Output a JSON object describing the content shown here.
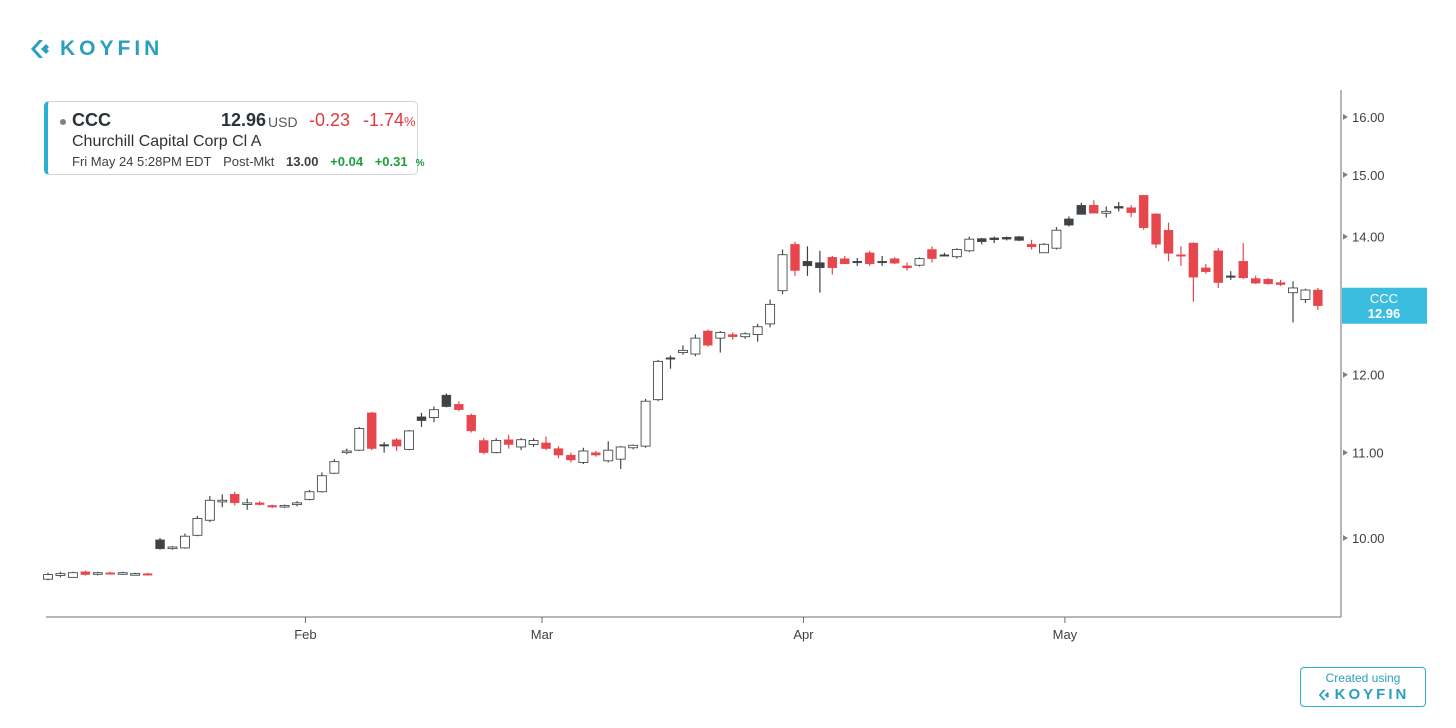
{
  "brand": {
    "name": "KOYFIN",
    "color": "#2a9fbf",
    "icon": "koyfin-chevron-icon"
  },
  "quote": {
    "ticker": "CCC",
    "price": "12.96",
    "currency": "USD",
    "change": "-0.23",
    "change_pct": "-1.74",
    "pct_sign": "%",
    "name": "Churchill Capital Corp Cl A",
    "timestamp": "Fri May 24 5:28PM EDT",
    "session": "Post-Mkt",
    "pm_price": "13.00",
    "pm_change": "+0.04",
    "pm_change_pct": "+0.31",
    "up_color": "#1e9e3e",
    "down_color": "#e0393e"
  },
  "footer": {
    "created_label": "Created using",
    "created_brand": "KOYFIN"
  },
  "chart_data": {
    "type": "candlestick",
    "x_tick_labels": [
      "Feb",
      "Mar",
      "Apr",
      "May"
    ],
    "y_tick_labels": [
      "10.00",
      "11.00",
      "12.00",
      "13.00",
      "14.00",
      "15.00",
      "16.00"
    ],
    "y_ticks": [
      10,
      11,
      12,
      13,
      14,
      15,
      16
    ],
    "y_scale": "log",
    "ylim": [
      9.2,
      16.5
    ],
    "price_tag": {
      "label": "CCC",
      "value": "12.96"
    },
    "last_price": 12.96,
    "colors": {
      "up": "#ffffff",
      "up_outline": "#444a4f",
      "down": "#e5474d",
      "flat": "#3d4347",
      "tag": "#3bbde0"
    },
    "month_start_index": {
      "Feb": 21,
      "Mar": 40,
      "Apr": 61,
      "May": 82
    },
    "candles": [
      {
        "o": 9.55,
        "h": 9.62,
        "l": 9.54,
        "c": 9.6
      },
      {
        "o": 9.59,
        "h": 9.63,
        "l": 9.57,
        "c": 9.61
      },
      {
        "o": 9.57,
        "h": 9.63,
        "l": 9.57,
        "c": 9.62
      },
      {
        "o": 9.63,
        "h": 9.64,
        "l": 9.59,
        "c": 9.6
      },
      {
        "o": 9.61,
        "h": 9.63,
        "l": 9.59,
        "c": 9.62
      },
      {
        "o": 9.62,
        "h": 9.63,
        "l": 9.6,
        "c": 9.61
      },
      {
        "o": 9.62,
        "h": 9.63,
        "l": 9.6,
        "c": 9.62
      },
      {
        "o": 9.61,
        "h": 9.62,
        "l": 9.6,
        "c": 9.61
      },
      {
        "o": 9.61,
        "h": 9.62,
        "l": 9.59,
        "c": 9.6
      },
      {
        "o": 9.98,
        "h": 10.0,
        "l": 9.87,
        "c": 9.88,
        "t": "flat"
      },
      {
        "o": 9.89,
        "h": 9.91,
        "l": 9.87,
        "c": 9.9
      },
      {
        "o": 9.89,
        "h": 10.05,
        "l": 9.88,
        "c": 10.02
      },
      {
        "o": 10.03,
        "h": 10.25,
        "l": 10.02,
        "c": 10.22
      },
      {
        "o": 10.2,
        "h": 10.48,
        "l": 10.18,
        "c": 10.43
      },
      {
        "o": 10.42,
        "h": 10.5,
        "l": 10.35,
        "c": 10.43
      },
      {
        "o": 10.5,
        "h": 10.53,
        "l": 10.37,
        "c": 10.4
      },
      {
        "o": 10.4,
        "h": 10.45,
        "l": 10.32,
        "c": 10.4
      },
      {
        "o": 10.4,
        "h": 10.42,
        "l": 10.37,
        "c": 10.38
      },
      {
        "o": 10.37,
        "h": 10.38,
        "l": 10.34,
        "c": 10.36
      },
      {
        "o": 10.36,
        "h": 10.38,
        "l": 10.34,
        "c": 10.37
      },
      {
        "o": 10.38,
        "h": 10.42,
        "l": 10.36,
        "c": 10.4
      },
      {
        "o": 10.44,
        "h": 10.55,
        "l": 10.43,
        "c": 10.53
      },
      {
        "o": 10.53,
        "h": 10.76,
        "l": 10.52,
        "c": 10.72
      },
      {
        "o": 10.75,
        "h": 10.92,
        "l": 10.74,
        "c": 10.89
      },
      {
        "o": 11.0,
        "h": 11.05,
        "l": 10.98,
        "c": 11.02
      },
      {
        "o": 11.03,
        "h": 11.32,
        "l": 11.02,
        "c": 11.3
      },
      {
        "o": 11.5,
        "h": 11.51,
        "l": 11.03,
        "c": 11.05
      },
      {
        "o": 11.1,
        "h": 11.13,
        "l": 11.0,
        "c": 11.1,
        "t": "flat"
      },
      {
        "o": 11.16,
        "h": 11.18,
        "l": 11.02,
        "c": 11.08
      },
      {
        "o": 11.04,
        "h": 11.28,
        "l": 11.03,
        "c": 11.27
      },
      {
        "o": 11.4,
        "h": 11.5,
        "l": 11.32,
        "c": 11.45,
        "t": "flat"
      },
      {
        "o": 11.44,
        "h": 11.58,
        "l": 11.38,
        "c": 11.54
      },
      {
        "o": 11.58,
        "h": 11.75,
        "l": 11.57,
        "c": 11.73,
        "t": "flat"
      },
      {
        "o": 11.61,
        "h": 11.65,
        "l": 11.52,
        "c": 11.54
      },
      {
        "o": 11.47,
        "h": 11.49,
        "l": 11.25,
        "c": 11.27
      },
      {
        "o": 11.15,
        "h": 11.18,
        "l": 10.98,
        "c": 11.0
      },
      {
        "o": 11.0,
        "h": 11.18,
        "l": 10.99,
        "c": 11.15
      },
      {
        "o": 11.16,
        "h": 11.22,
        "l": 11.05,
        "c": 11.1
      },
      {
        "o": 11.07,
        "h": 11.18,
        "l": 11.03,
        "c": 11.16
      },
      {
        "o": 11.1,
        "h": 11.18,
        "l": 11.07,
        "c": 11.15
      },
      {
        "o": 11.12,
        "h": 11.2,
        "l": 11.03,
        "c": 11.05
      },
      {
        "o": 11.05,
        "h": 11.08,
        "l": 10.93,
        "c": 10.97
      },
      {
        "o": 10.97,
        "h": 11.0,
        "l": 10.88,
        "c": 10.91
      },
      {
        "o": 10.88,
        "h": 11.06,
        "l": 10.86,
        "c": 11.02
      },
      {
        "o": 11.0,
        "h": 11.02,
        "l": 10.95,
        "c": 10.97
      },
      {
        "o": 10.9,
        "h": 11.14,
        "l": 10.88,
        "c": 11.03
      },
      {
        "o": 10.92,
        "h": 11.08,
        "l": 10.8,
        "c": 11.07
      },
      {
        "o": 11.06,
        "h": 11.1,
        "l": 11.04,
        "c": 11.09
      },
      {
        "o": 11.08,
        "h": 11.68,
        "l": 11.06,
        "c": 11.65
      },
      {
        "o": 11.67,
        "h": 12.2,
        "l": 11.65,
        "c": 12.18
      },
      {
        "o": 12.23,
        "h": 12.26,
        "l": 12.08,
        "c": 12.22,
        "t": "flat"
      },
      {
        "o": 12.3,
        "h": 12.4,
        "l": 12.27,
        "c": 12.33
      },
      {
        "o": 12.28,
        "h": 12.55,
        "l": 12.25,
        "c": 12.5
      },
      {
        "o": 12.6,
        "h": 12.62,
        "l": 12.38,
        "c": 12.4
      },
      {
        "o": 12.5,
        "h": 12.6,
        "l": 12.3,
        "c": 12.58
      },
      {
        "o": 12.55,
        "h": 12.58,
        "l": 12.48,
        "c": 12.52
      },
      {
        "o": 12.52,
        "h": 12.58,
        "l": 12.49,
        "c": 12.56
      },
      {
        "o": 12.55,
        "h": 12.7,
        "l": 12.45,
        "c": 12.66
      },
      {
        "o": 12.7,
        "h": 13.05,
        "l": 12.65,
        "c": 12.98
      },
      {
        "o": 13.18,
        "h": 13.8,
        "l": 13.13,
        "c": 13.72
      },
      {
        "o": 13.88,
        "h": 13.92,
        "l": 13.4,
        "c": 13.48
      },
      {
        "o": 13.62,
        "h": 13.85,
        "l": 13.4,
        "c": 13.55,
        "t": "flat"
      },
      {
        "o": 13.52,
        "h": 13.78,
        "l": 13.15,
        "c": 13.6,
        "t": "flat"
      },
      {
        "o": 13.68,
        "h": 13.7,
        "l": 13.42,
        "c": 13.52
      },
      {
        "o": 13.66,
        "h": 13.7,
        "l": 13.58,
        "c": 13.58
      },
      {
        "o": 13.6,
        "h": 13.67,
        "l": 13.55,
        "c": 13.62,
        "t": "flat"
      },
      {
        "o": 13.75,
        "h": 13.78,
        "l": 13.55,
        "c": 13.58
      },
      {
        "o": 13.6,
        "h": 13.7,
        "l": 13.55,
        "c": 13.62,
        "t": "flat"
      },
      {
        "o": 13.66,
        "h": 13.68,
        "l": 13.58,
        "c": 13.59
      },
      {
        "o": 13.55,
        "h": 13.6,
        "l": 13.48,
        "c": 13.52
      },
      {
        "o": 13.56,
        "h": 13.68,
        "l": 13.54,
        "c": 13.66
      },
      {
        "o": 13.8,
        "h": 13.85,
        "l": 13.6,
        "c": 13.66
      },
      {
        "o": 13.72,
        "h": 13.75,
        "l": 13.7,
        "c": 13.72,
        "t": "flat"
      },
      {
        "o": 13.69,
        "h": 13.82,
        "l": 13.66,
        "c": 13.8
      },
      {
        "o": 13.78,
        "h": 14.0,
        "l": 13.76,
        "c": 13.96
      },
      {
        "o": 13.92,
        "h": 13.98,
        "l": 13.88,
        "c": 13.97,
        "t": "flat"
      },
      {
        "o": 13.95,
        "h": 14.0,
        "l": 13.9,
        "c": 13.98,
        "t": "flat"
      },
      {
        "o": 13.96,
        "h": 14.0,
        "l": 13.94,
        "c": 13.99,
        "t": "flat"
      },
      {
        "o": 13.94,
        "h": 14.01,
        "l": 13.93,
        "c": 14.0,
        "t": "flat"
      },
      {
        "o": 13.88,
        "h": 13.95,
        "l": 13.8,
        "c": 13.84
      },
      {
        "o": 13.75,
        "h": 13.9,
        "l": 13.75,
        "c": 13.88
      },
      {
        "o": 13.82,
        "h": 14.15,
        "l": 13.8,
        "c": 14.1
      },
      {
        "o": 14.18,
        "h": 14.32,
        "l": 14.16,
        "c": 14.28,
        "t": "flat"
      },
      {
        "o": 14.35,
        "h": 14.54,
        "l": 14.35,
        "c": 14.5,
        "t": "flat"
      },
      {
        "o": 14.5,
        "h": 14.58,
        "l": 14.4,
        "c": 14.37
      },
      {
        "o": 14.37,
        "h": 14.48,
        "l": 14.3,
        "c": 14.4
      },
      {
        "o": 14.48,
        "h": 14.55,
        "l": 14.4,
        "c": 14.45,
        "t": "flat"
      },
      {
        "o": 14.46,
        "h": 14.5,
        "l": 14.31,
        "c": 14.38
      },
      {
        "o": 14.66,
        "h": 14.67,
        "l": 14.11,
        "c": 14.14
      },
      {
        "o": 14.36,
        "h": 14.37,
        "l": 13.82,
        "c": 13.88
      },
      {
        "o": 14.1,
        "h": 14.22,
        "l": 13.62,
        "c": 13.74
      },
      {
        "o": 13.72,
        "h": 13.85,
        "l": 13.55,
        "c": 13.7
      },
      {
        "o": 13.9,
        "h": 13.91,
        "l": 13.02,
        "c": 13.38
      },
      {
        "o": 13.52,
        "h": 13.58,
        "l": 13.43,
        "c": 13.46
      },
      {
        "o": 13.78,
        "h": 13.82,
        "l": 13.22,
        "c": 13.3
      },
      {
        "o": 13.38,
        "h": 13.47,
        "l": 13.34,
        "c": 13.4,
        "t": "flat"
      },
      {
        "o": 13.62,
        "h": 13.9,
        "l": 13.35,
        "c": 13.37
      },
      {
        "o": 13.36,
        "h": 13.4,
        "l": 13.28,
        "c": 13.29
      },
      {
        "o": 13.35,
        "h": 13.37,
        "l": 13.27,
        "c": 13.28
      },
      {
        "o": 13.3,
        "h": 13.34,
        "l": 13.25,
        "c": 13.27
      },
      {
        "o": 13.15,
        "h": 13.32,
        "l": 12.72,
        "c": 13.22
      },
      {
        "o": 13.05,
        "h": 13.21,
        "l": 13.0,
        "c": 13.19
      },
      {
        "o": 13.19,
        "h": 13.22,
        "l": 12.9,
        "c": 12.96
      }
    ]
  }
}
